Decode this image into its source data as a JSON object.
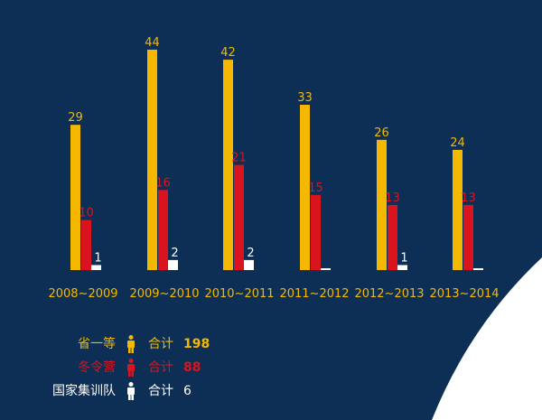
{
  "chart_data": {
    "type": "bar",
    "categories": [
      "2008~2009",
      "2009~2010",
      "2010~2011",
      "2011~2012",
      "2012~2013",
      "2013~2014"
    ],
    "series": [
      {
        "name": "省一等",
        "values": [
          29,
          44,
          42,
          33,
          26,
          24
        ],
        "labels": [
          "29",
          "44",
          "42",
          "33",
          "26",
          "24"
        ]
      },
      {
        "name": "冬令营",
        "values": [
          10,
          16,
          21,
          15,
          13,
          13
        ],
        "labels": [
          "10",
          "16",
          "21",
          "15",
          "13",
          "13"
        ]
      },
      {
        "name": "国家集训队",
        "values": [
          1,
          2,
          2,
          0,
          1,
          0
        ],
        "labels": [
          "1",
          "2",
          "2",
          "",
          "1",
          ""
        ]
      }
    ],
    "ylim": [
      0,
      45
    ]
  },
  "legend": [
    {
      "name": "省一等",
      "total_label": "合计",
      "total_value": "198"
    },
    {
      "name": "冬令营",
      "total_label": "合计",
      "total_value": "88"
    },
    {
      "name": "国家集训队",
      "total_label": "合计",
      "total_value": "6"
    }
  ],
  "colors": {
    "background": "#0d2f55",
    "series": [
      "#f5b800",
      "#d9141e",
      "#ffffff"
    ],
    "tick": "#f5b800",
    "corner": "#ffffff"
  },
  "icons": [
    "person-icon",
    "person-icon",
    "person-icon"
  ]
}
